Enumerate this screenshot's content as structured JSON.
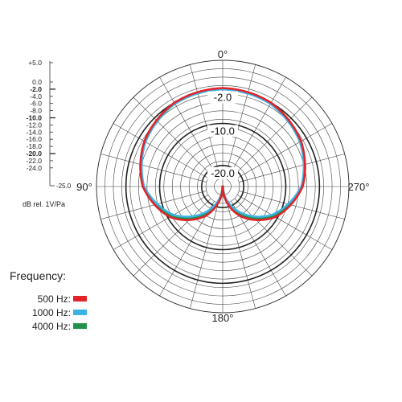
{
  "chart_data": {
    "type": "polar",
    "angles": {
      "top": "0°",
      "left": "90°",
      "right": "270°",
      "bottom": "180°"
    },
    "ring_labels": [
      "-2.0",
      "-10.0",
      "-20.0"
    ],
    "scale": {
      "labels": [
        "+5.0",
        "0.0",
        "-2.0",
        "-4.0",
        "-6.0",
        "-8.0",
        "-10.0",
        "-12.0",
        "-14.0",
        "-16.0",
        "-18.0",
        "-20.0",
        "-22.0",
        "-24.0",
        "-25.0"
      ],
      "bold_labels": [
        "-2.0",
        "-10.0",
        "-20.0"
      ],
      "unit": "dB rel. 1V/Pa"
    },
    "legend": {
      "title": "Frequency:",
      "items": [
        {
          "label": "500 Hz:",
          "color": "#e2232a"
        },
        {
          "label": "1000 Hz:",
          "color": "#3bb4e5"
        },
        {
          "label": "4000 Hz:",
          "color": "#21924a"
        }
      ]
    },
    "series": [
      {
        "name": "500 Hz",
        "color": "#e2232a",
        "angles_deg": [
          0,
          30,
          60,
          90,
          120,
          150,
          165,
          180
        ],
        "values_db": [
          -1.6,
          -2.0,
          -3.5,
          -6.0,
          -10.5,
          -17.0,
          -21.0,
          -25.0
        ]
      },
      {
        "name": "1000 Hz",
        "color": "#3bb4e5",
        "angles_deg": [
          0,
          30,
          60,
          90,
          120,
          150,
          165,
          180
        ],
        "values_db": [
          -1.9,
          -2.3,
          -3.8,
          -6.3,
          -11.5,
          -18.5,
          -22.0,
          -25.0
        ]
      },
      {
        "name": "4000 Hz",
        "color": "#21924a",
        "angles_deg": [
          0,
          30,
          60,
          90,
          120,
          150,
          165,
          180
        ],
        "values_db": [
          -1.8,
          -2.1,
          -3.6,
          -6.1,
          -11.0,
          -18.0,
          -21.5,
          -25.0
        ]
      }
    ]
  }
}
